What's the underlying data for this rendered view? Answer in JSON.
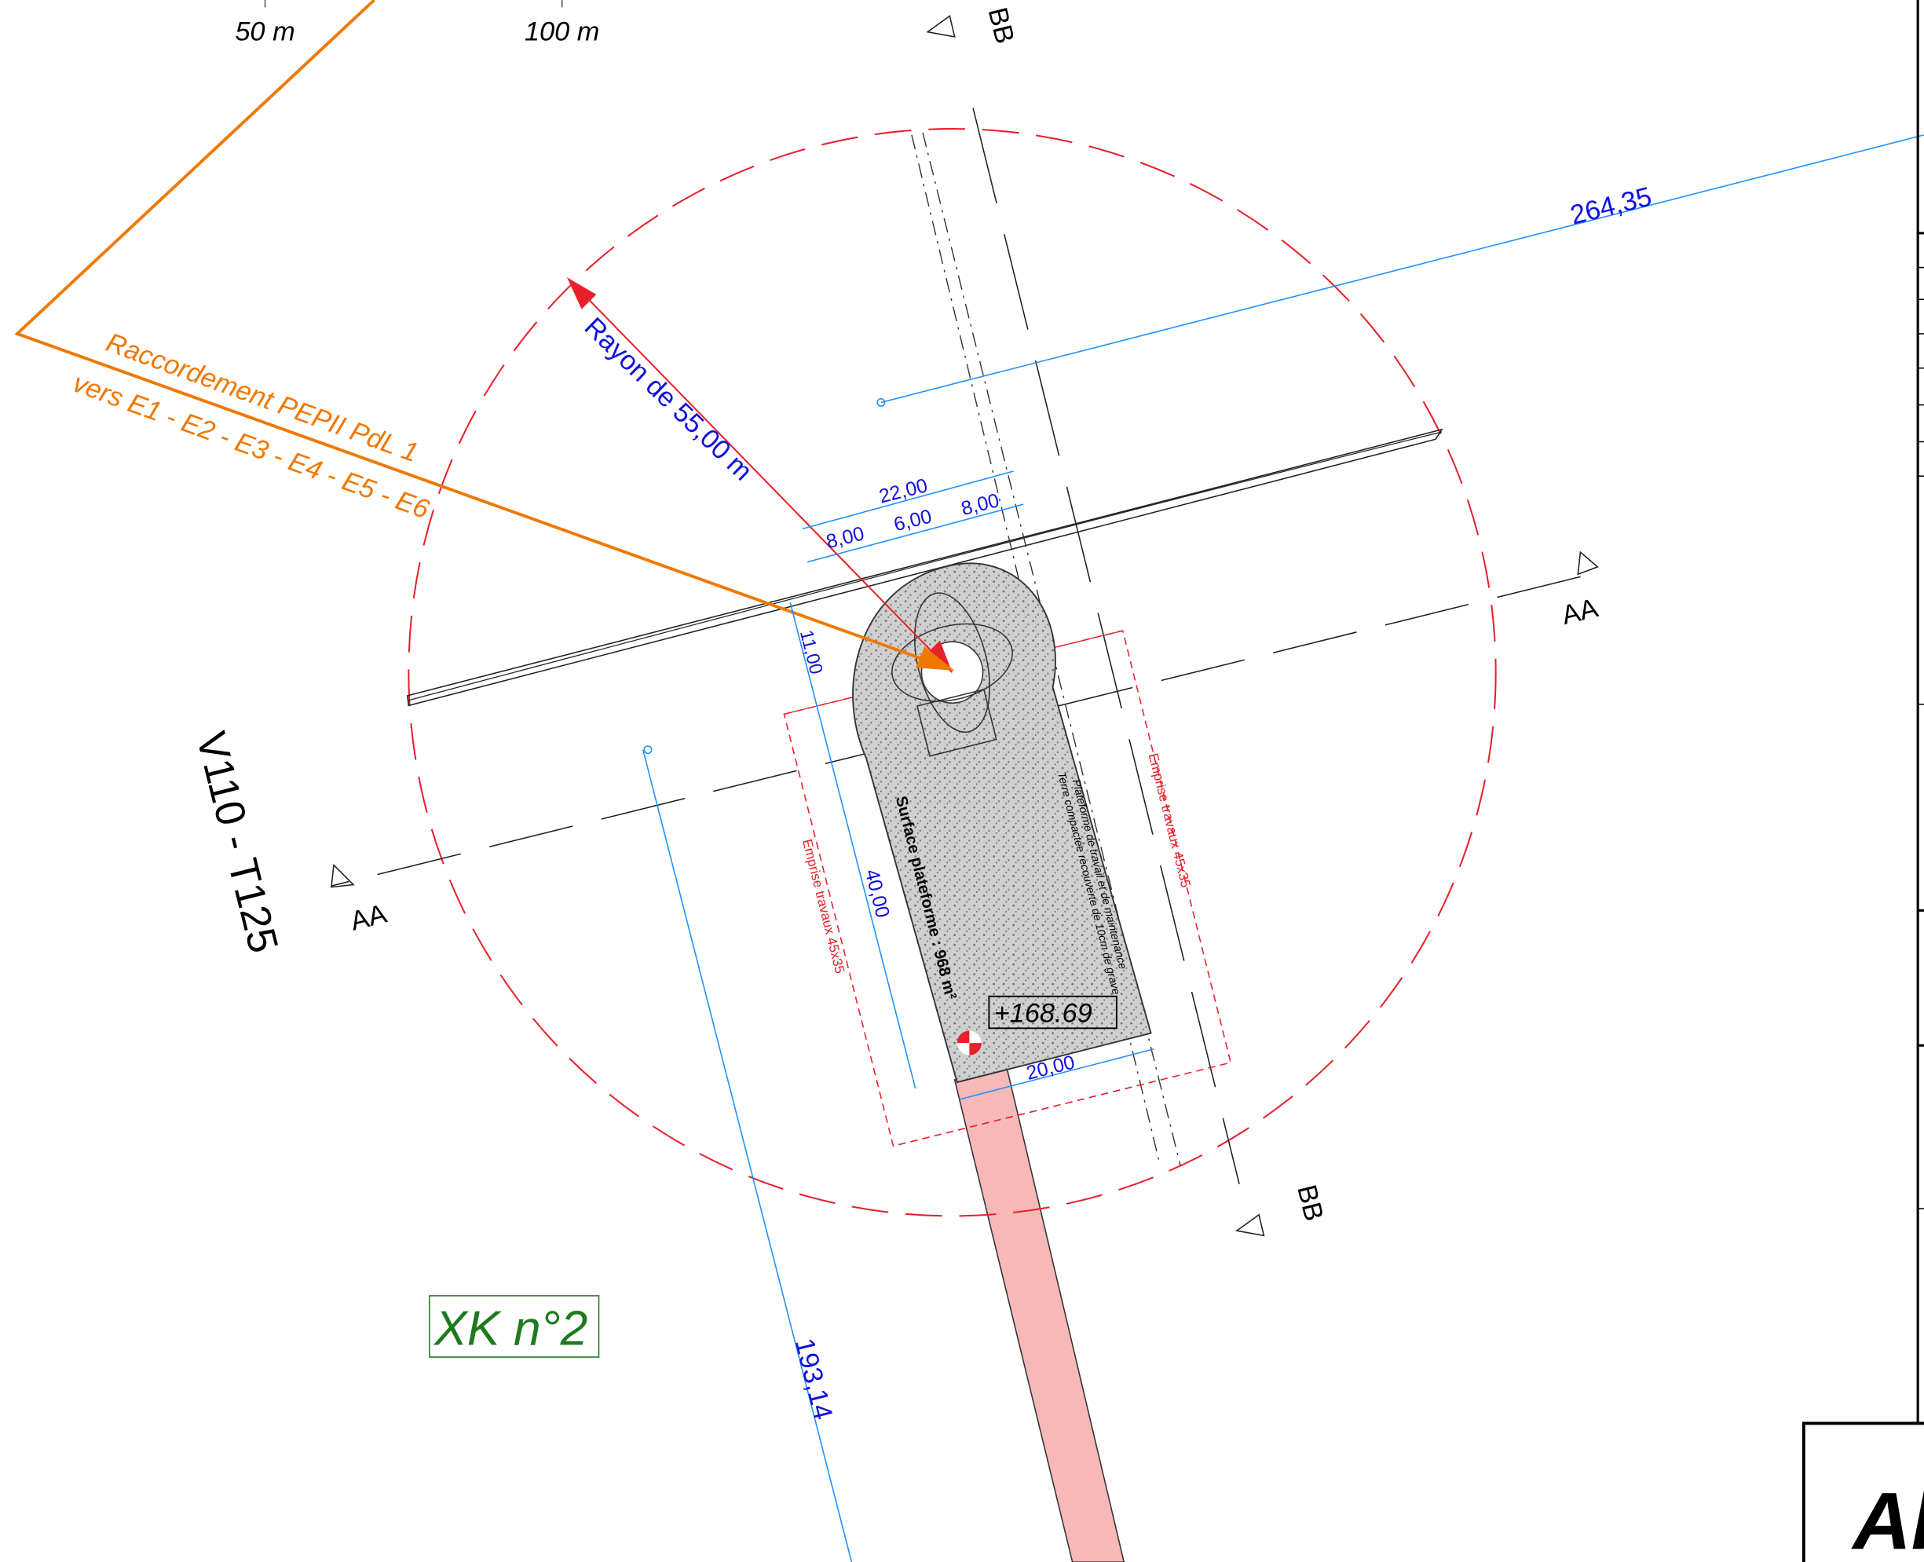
{
  "scale": {
    "label_50": "50 m",
    "label_100": "100 m"
  },
  "section_labels": {
    "bb_top": "BB",
    "bb_bottom": "BB",
    "aa_right": "AA",
    "aa_left": "AA"
  },
  "dimensions": {
    "d_264": "264,35",
    "d_22": "22,00",
    "d_8_left": "8,00",
    "d_6": "6,00",
    "d_8_right": "8,00",
    "d_11": "11,00",
    "d_40": "40,00",
    "d_20": "20,00",
    "d_193": "193,14"
  },
  "annotations": {
    "rayon": "Rayon de 55,00 m",
    "raccordement_line1": "Raccordement PEPII PdL 1",
    "raccordement_line2": "vers E1 - E2 - E3 - E4 - E5 - E6",
    "turbine_model": "V110 - T125",
    "surface": "Surface plateforme : 968 m²",
    "platform_note_1": "Plateforme de travail et de maintenance",
    "platform_note_2": "Terre compactée recouverte de 10cm de grave",
    "elevation": "+168.69",
    "emprise_right": "Emprise travaux 45x35",
    "emprise_left": "Emprise travaux 45x35",
    "parcel": "XK n°2",
    "corner_title": "Al"
  },
  "colors": {
    "radius_circle": "#e8202a",
    "dimension_blue": "#1e90ff",
    "dimension_text": "#1010e0",
    "raccordement_orange": "#f07800",
    "access_path_fill": "#f7b8b8",
    "parcel_green": "#1f7a1f",
    "platform_fill": "#c8c8c8"
  }
}
